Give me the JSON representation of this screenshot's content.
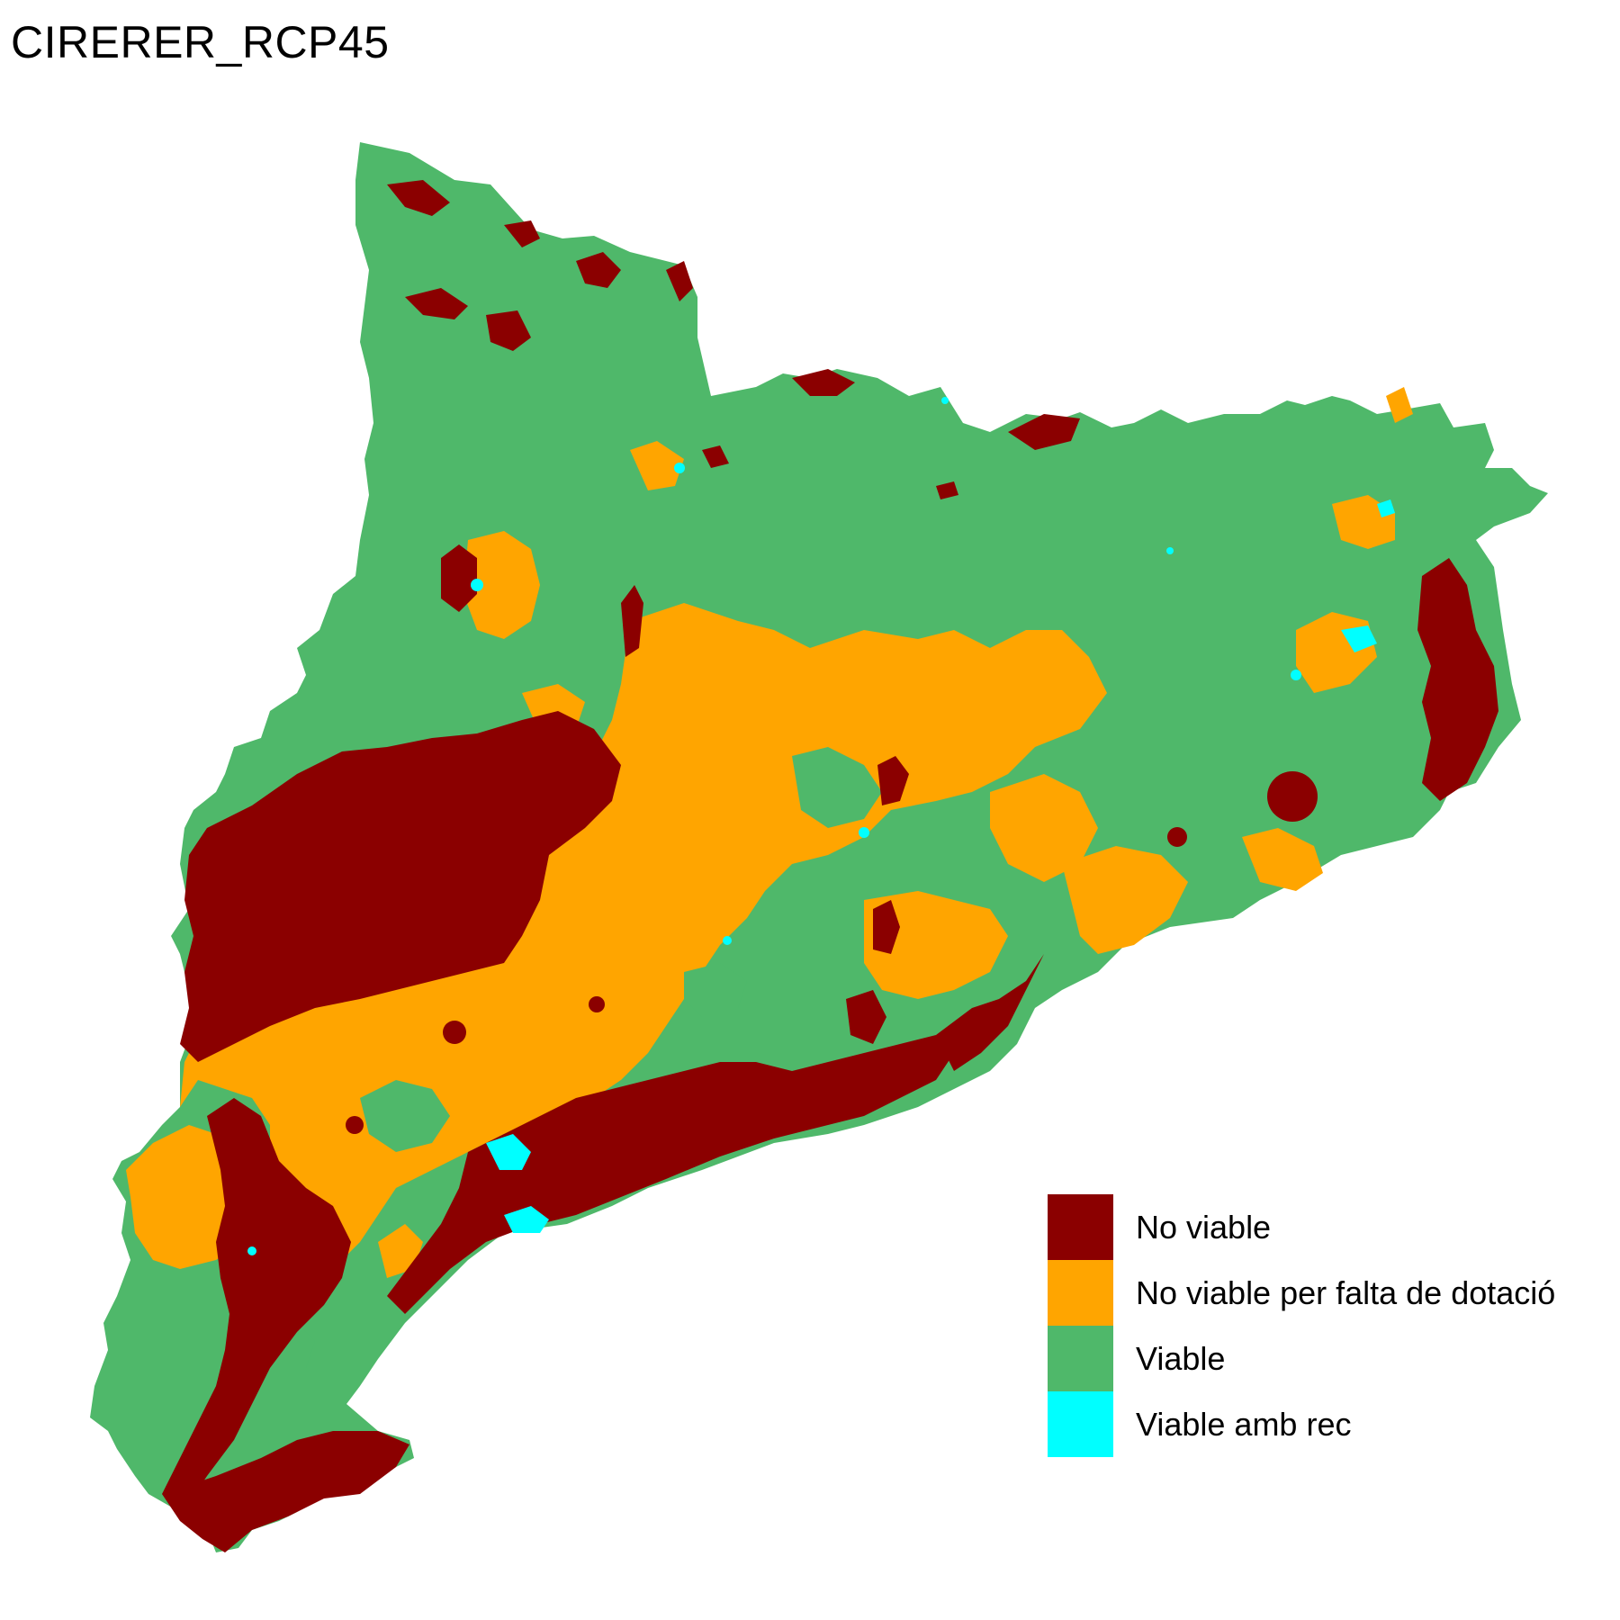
{
  "title": "CIRERER_RCP45",
  "colors": {
    "no_viable": "#8B0000",
    "no_viable_dotacio": "#FFA500",
    "viable": "#4FB86A",
    "viable_rec": "#00FFFF"
  },
  "legend": [
    {
      "label": "No viable",
      "color": "#8B0000"
    },
    {
      "label": "No viable per falta de dotació",
      "color": "#FFA500"
    },
    {
      "label": "Viable",
      "color": "#4FB86A"
    },
    {
      "label": "Viable amb rec",
      "color": "#00FFFF"
    }
  ]
}
